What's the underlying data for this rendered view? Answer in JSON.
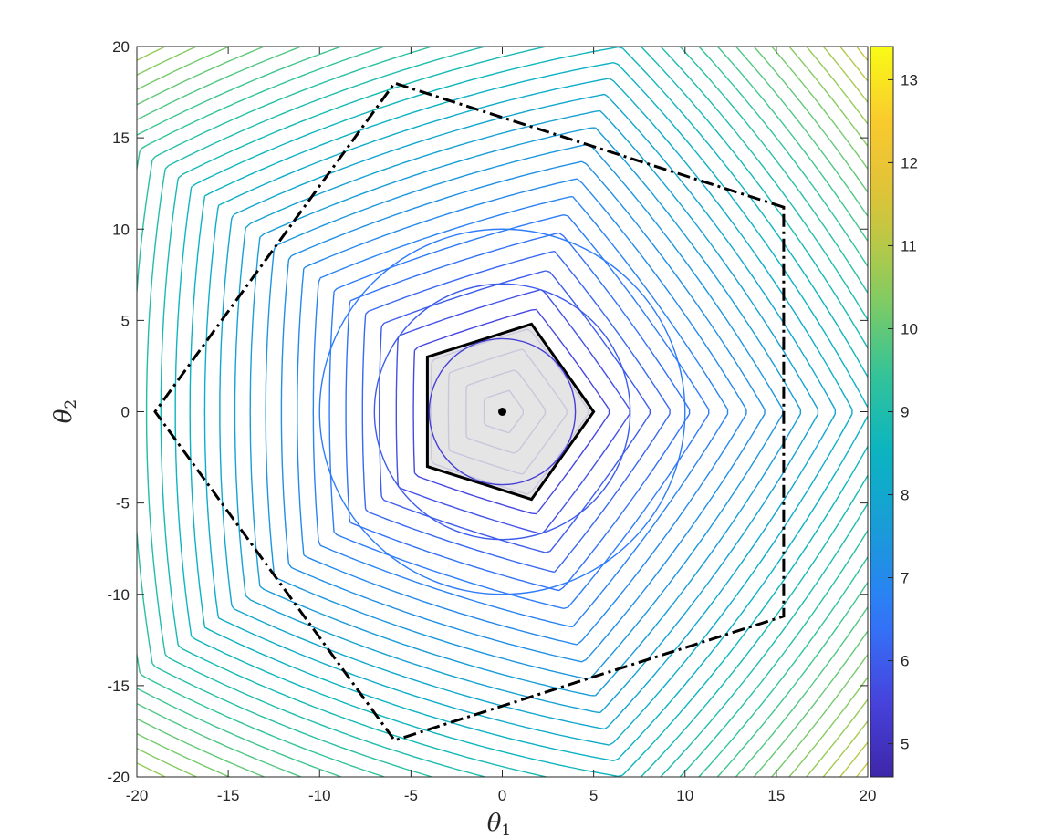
{
  "chart_data": {
    "type": "contour",
    "title": "",
    "xlabel": {
      "symbol": "θ",
      "subscript": "1"
    },
    "ylabel": {
      "symbol": "θ",
      "subscript": "2"
    },
    "xlim": [
      -20,
      20
    ],
    "ylim": [
      -20,
      20
    ],
    "xticks": [
      -20,
      -15,
      -10,
      -5,
      0,
      5,
      10,
      15,
      20
    ],
    "yticks": [
      -20,
      -15,
      -10,
      -5,
      0,
      5,
      10,
      15,
      20
    ],
    "xtick_labels": [
      "-20",
      "-15",
      "-10",
      "-5",
      "0",
      "5",
      "10",
      "15",
      "20"
    ],
    "ytick_labels": [
      "-20",
      "-15",
      "-10",
      "-5",
      "0",
      "5",
      "10",
      "15",
      "20"
    ],
    "grid": false,
    "colorbar": {
      "limits": [
        4.6,
        13.4
      ],
      "ticks": [
        5,
        6,
        7,
        8,
        9,
        10,
        11,
        12,
        13
      ],
      "tick_labels": [
        "5",
        "6",
        "7",
        "8",
        "9",
        "10",
        "11",
        "12",
        "13"
      ],
      "colormap": "parula"
    },
    "contour_levels": {
      "min": 4.6,
      "max": 13.4,
      "step": 0.2
    },
    "center_point": [
      0,
      0
    ],
    "inner_pentagon": {
      "style": "solid",
      "fill": "#e0e0e0",
      "vertices": [
        [
          5,
          0
        ],
        [
          1.6,
          4.8
        ],
        [
          -4.1,
          3
        ],
        [
          -4.1,
          -3
        ],
        [
          1.6,
          -4.8
        ]
      ]
    },
    "outer_pentagon": {
      "style": "dash-dot",
      "vertices": [
        [
          15.4,
          11.2
        ],
        [
          -5.9,
          18
        ],
        [
          -19,
          0
        ],
        [
          -5.9,
          -18
        ],
        [
          15.4,
          -11.2
        ]
      ]
    },
    "colors": {
      "parula": [
        "#3e26a8",
        "#4745e1",
        "#2f7bfb",
        "#1a9ad9",
        "#0ab4c1",
        "#36c496",
        "#8ccc5b",
        "#d7c43a",
        "#f9c630",
        "#f9fb15"
      ],
      "axis": "#262626",
      "line": "#000000"
    }
  }
}
